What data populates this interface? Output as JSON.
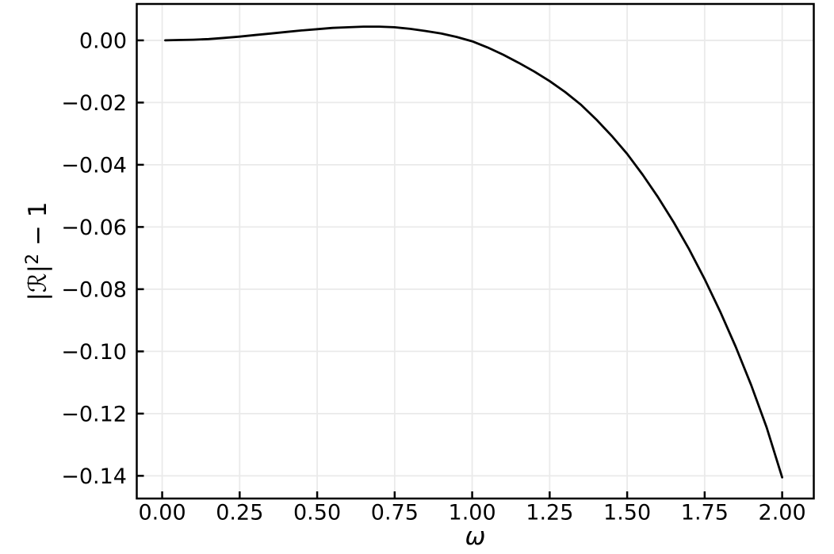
{
  "figure": {
    "background": "#ffffff",
    "text_color": "#000000",
    "frame_color": "#000000",
    "grid_color": "#eaeaea",
    "line_color": "#000000"
  },
  "chart_data": {
    "type": "line",
    "title": "",
    "xlabel": "ω",
    "ylabel": "|ℛ|² − 1",
    "ylabel_parts": {
      "prefix": "|ℛ|",
      "sup": "2",
      "suffix": " − 1"
    },
    "xlim": [
      -0.082,
      2.102
    ],
    "ylim": [
      -0.1473,
      0.0117
    ],
    "grid": true,
    "legend": false,
    "xticks": [
      0.0,
      0.25,
      0.5,
      0.75,
      1.0,
      1.25,
      1.5,
      1.75,
      2.0
    ],
    "xtick_labels": [
      "0.00",
      "0.25",
      "0.50",
      "0.75",
      "1.00",
      "1.25",
      "1.50",
      "1.75",
      "2.00"
    ],
    "yticks": [
      0.0,
      -0.02,
      -0.04,
      -0.06,
      -0.08,
      -0.1,
      -0.12,
      -0.14
    ],
    "ytick_labels": [
      "0.00",
      "−0.02",
      "−0.04",
      "−0.06",
      "−0.08",
      "−0.10",
      "−0.12",
      "−0.14"
    ],
    "series": [
      {
        "color": "#000000",
        "x": [
          0.01,
          0.05,
          0.1,
          0.15,
          0.2,
          0.25,
          0.3,
          0.35,
          0.4,
          0.45,
          0.5,
          0.55,
          0.6,
          0.65,
          0.7,
          0.75,
          0.8,
          0.85,
          0.9,
          0.95,
          1.0,
          1.05,
          1.1,
          1.15,
          1.2,
          1.25,
          1.3,
          1.35,
          1.4,
          1.45,
          1.5,
          1.55,
          1.6,
          1.65,
          1.7,
          1.75,
          1.8,
          1.85,
          1.9,
          1.95,
          2.0
        ],
        "y": [
          0.0,
          0.0001,
          0.0002,
          0.0004,
          0.0008,
          0.0012,
          0.0017,
          0.0022,
          0.0027,
          0.0032,
          0.0036,
          0.004,
          0.0042,
          0.0044,
          0.0044,
          0.0042,
          0.0037,
          0.003,
          0.0022,
          0.0011,
          -0.0003,
          -0.0023,
          -0.0046,
          -0.0072,
          -0.01,
          -0.0131,
          -0.0166,
          -0.0206,
          -0.0254,
          -0.0307,
          -0.0365,
          -0.0432,
          -0.0505,
          -0.0585,
          -0.0672,
          -0.0768,
          -0.0872,
          -0.0985,
          -0.1108,
          -0.1245,
          -0.1405
        ]
      }
    ]
  }
}
